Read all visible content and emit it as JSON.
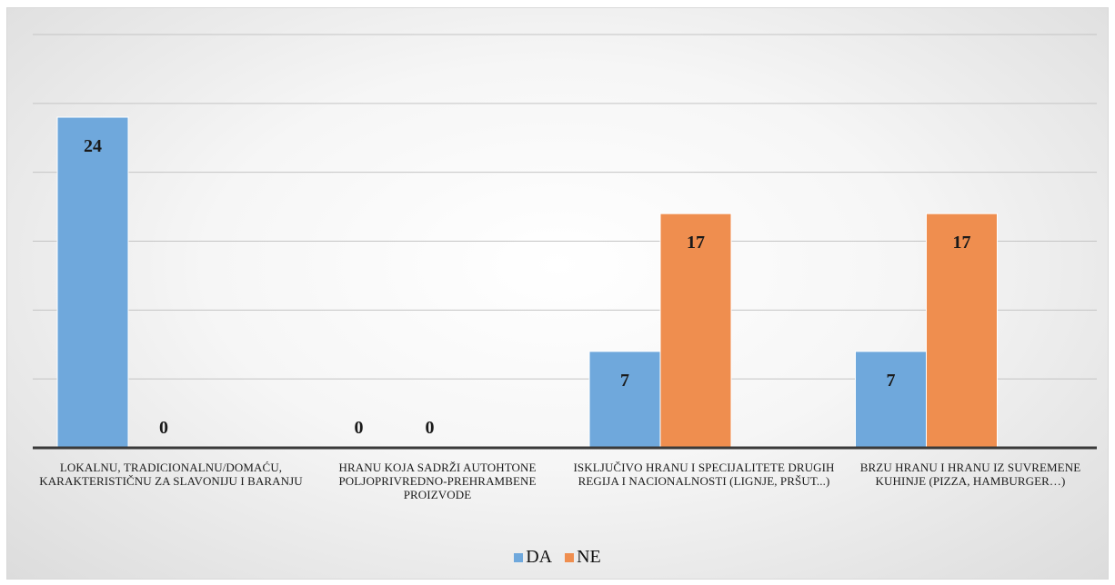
{
  "chart_data": {
    "type": "bar",
    "categories": [
      "LOKALNU, TRADICIONALNU/DOMAĆU, KARAKTERISTIČNU ZA SLAVONIJU I BARANJU",
      "HRANU KOJA SADRŽI AUTOHTONE POLJOPRIVREDNO-PREHRAMBENE PROIZVODE",
      "ISKLJUČIVO HRANU I SPECIJALITETE DRUGIH REGIJA I NACIONALNOSTI (LIGNJE, PRŠUT...)",
      "BRZU HRANU I HRANU IZ SUVREMENE KUHINJE (PIZZA, HAMBURGER…)"
    ],
    "series": [
      {
        "name": "DA",
        "color": "#6fa8dc",
        "values": [
          24,
          0,
          7,
          7
        ]
      },
      {
        "name": "NE",
        "color": "#ef8e4f",
        "values": [
          0,
          0,
          17,
          17
        ]
      }
    ],
    "ylim": [
      0,
      30
    ],
    "grid": true,
    "legend": "bottom",
    "data_labels": true
  }
}
